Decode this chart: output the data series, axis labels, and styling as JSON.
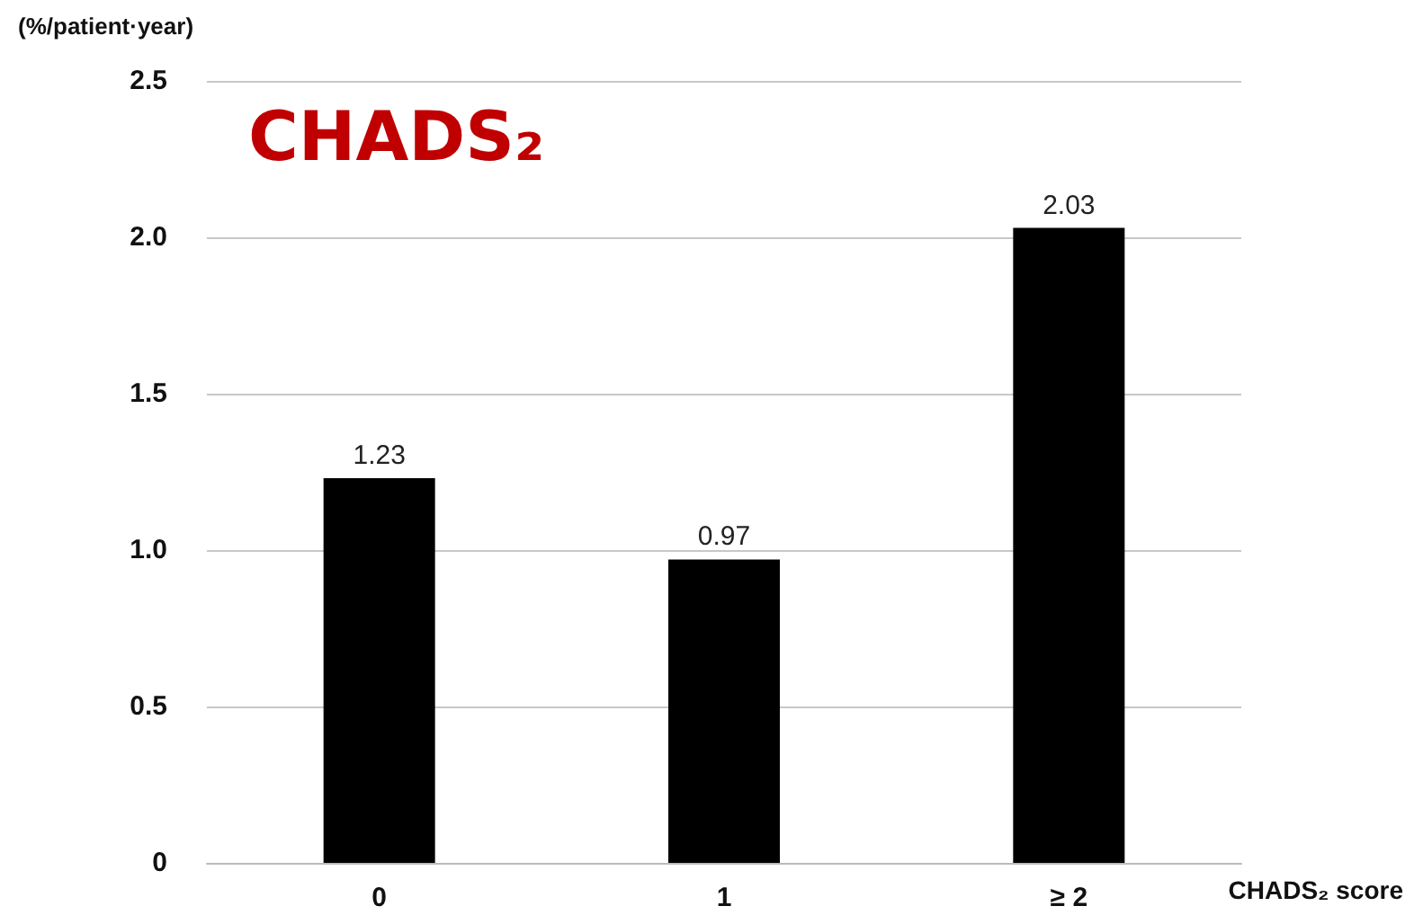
{
  "chart_data": {
    "type": "bar",
    "title": "CHADS₂",
    "xlabel": "CHADS₂ score",
    "ylabel": "(%/patient·year)",
    "categories": [
      "0",
      "1",
      "≥ 2"
    ],
    "values": [
      1.23,
      0.97,
      2.03
    ],
    "color": "#000000",
    "ylim": [
      0,
      2.5
    ],
    "yticks": [
      0,
      0.5,
      {
        "value": 1,
        "label": "1.0"
      },
      1.5,
      {
        "value": 2,
        "label": "2.0"
      },
      2.5
    ],
    "grid": "y",
    "data_labels": true
  }
}
